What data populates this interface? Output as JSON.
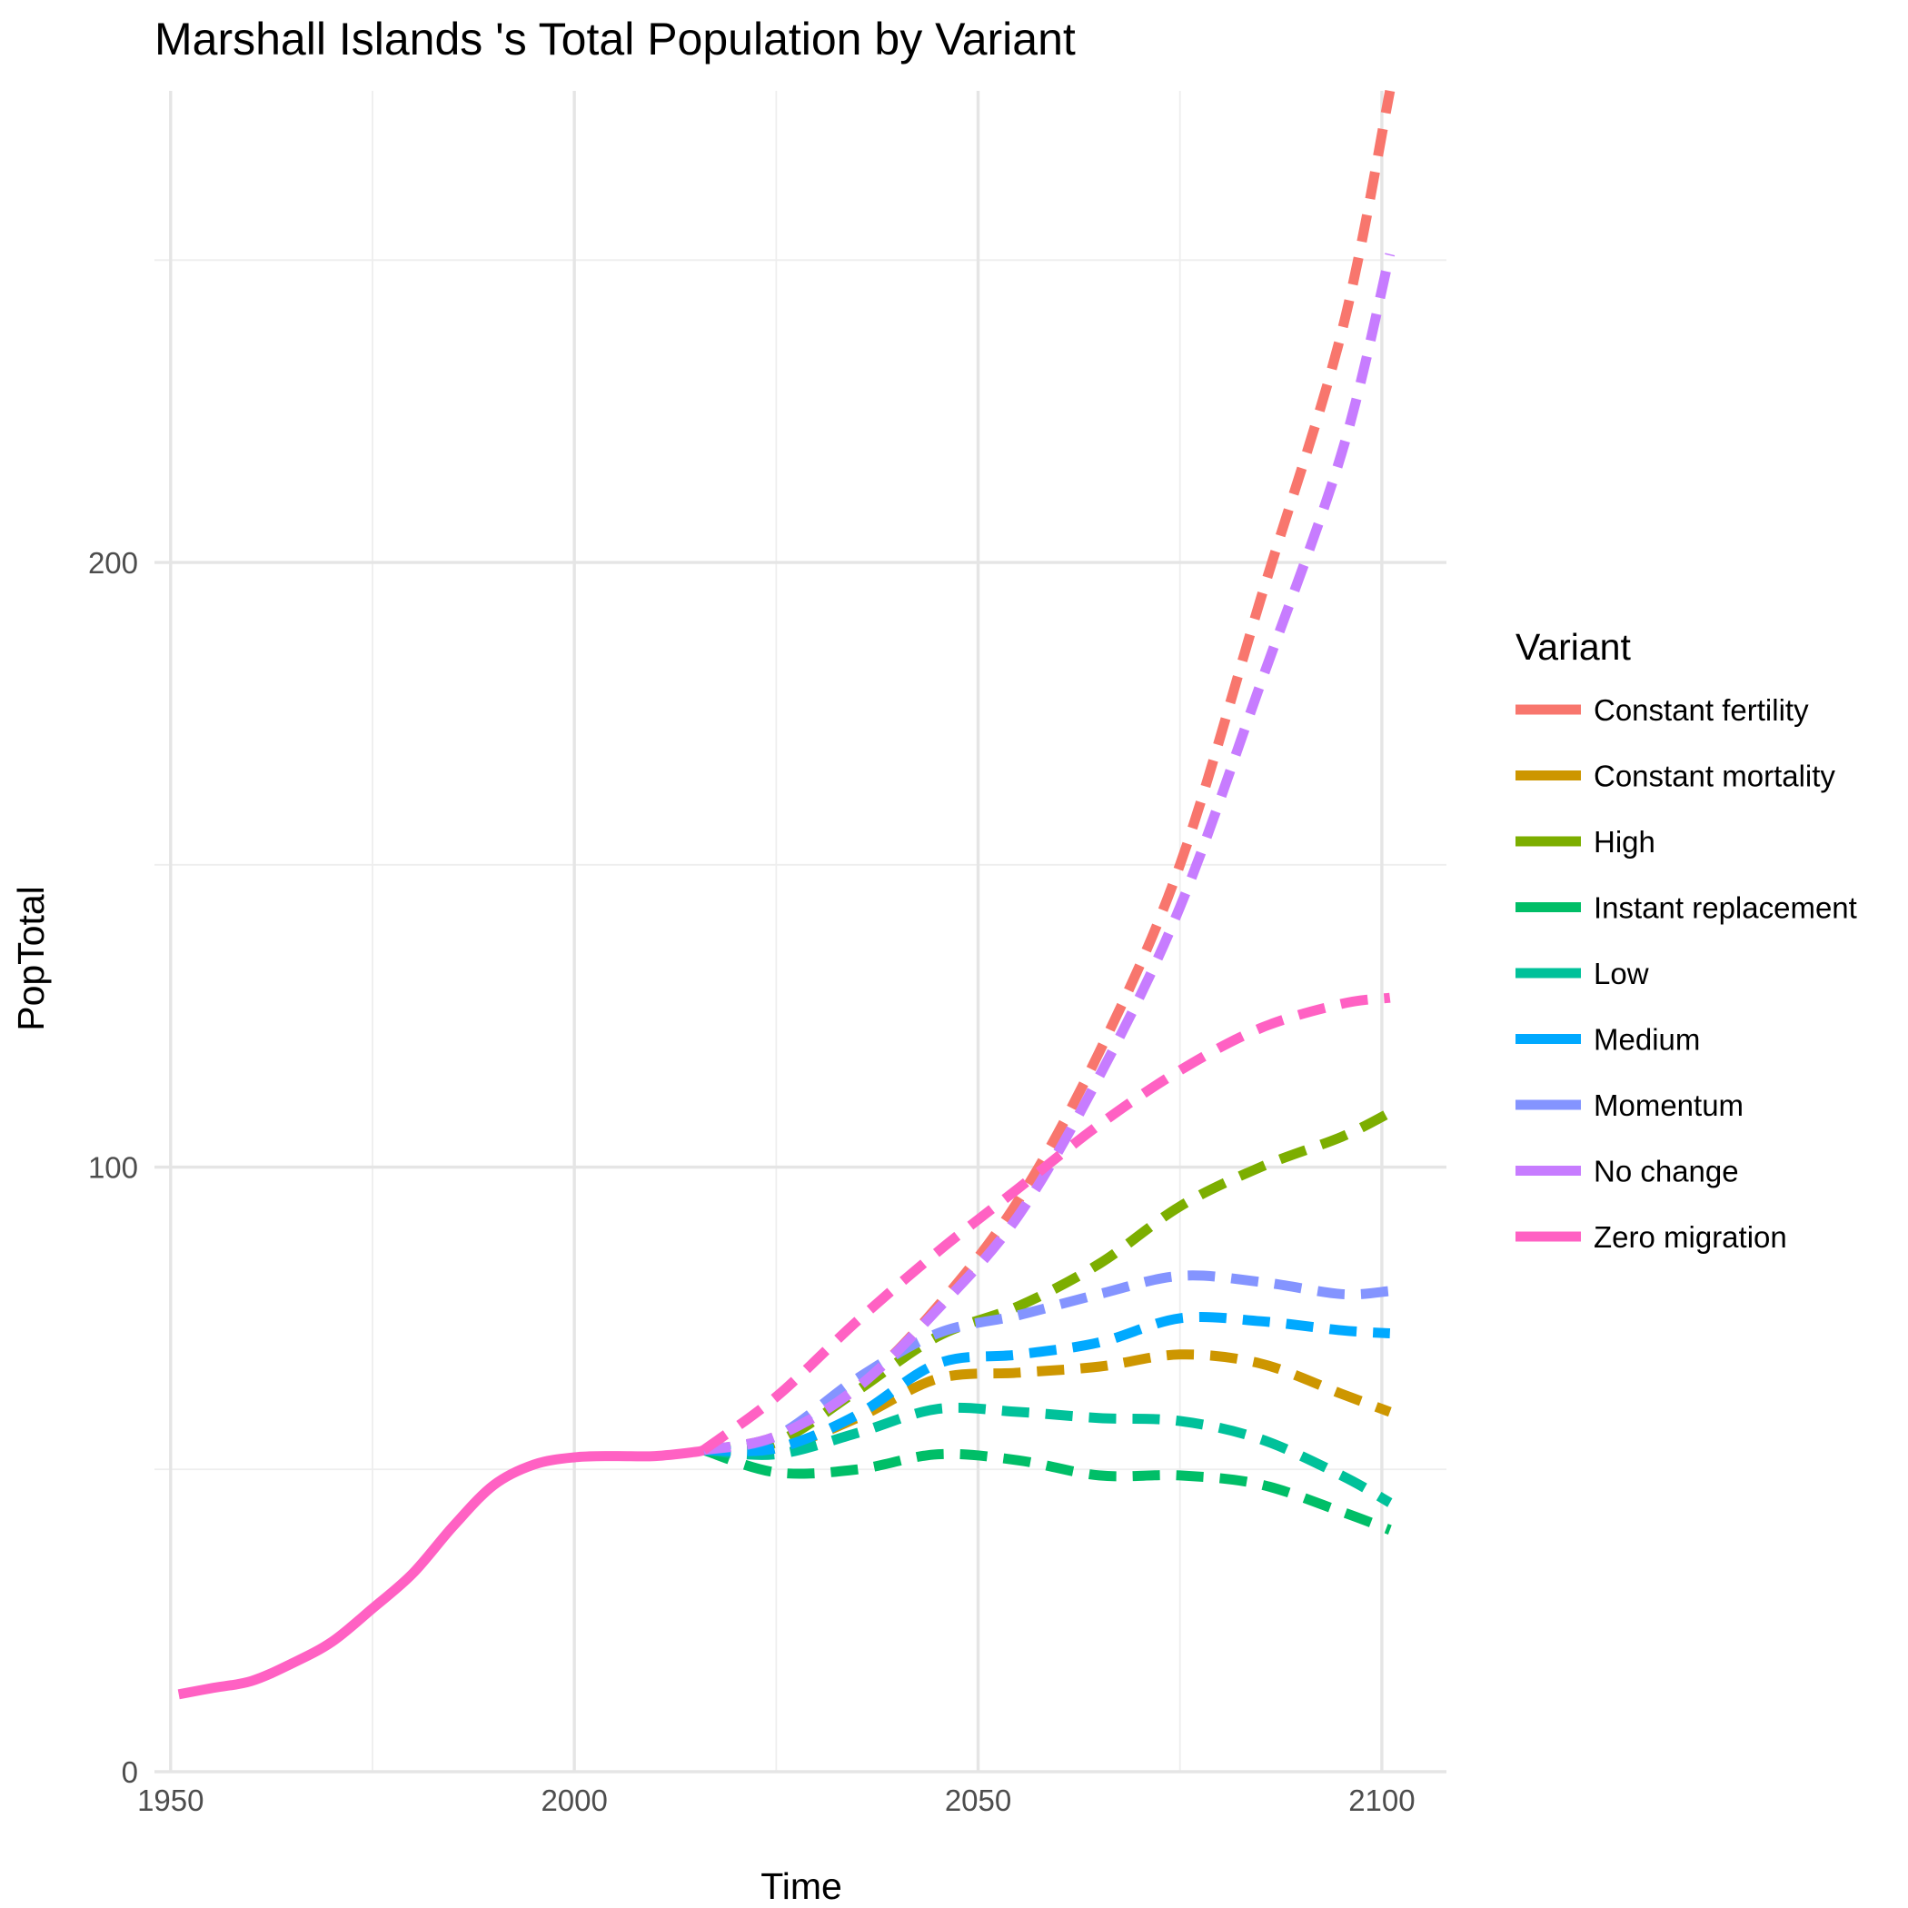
{
  "chart_data": {
    "type": "line",
    "title": "Marshall Islands 's Total Population by Variant",
    "xlabel": "Time",
    "ylabel": "PopTotal",
    "xlim": [
      1948,
      2108
    ],
    "ylim": [
      0,
      278
    ],
    "x_ticks": [
      1950,
      2000,
      2050,
      2100
    ],
    "x_tick_labels": [
      "1950",
      "2000",
      "2050",
      "2100"
    ],
    "x_minor_ticks": [
      1975,
      2025,
      2075
    ],
    "y_ticks": [
      0,
      100,
      200
    ],
    "y_tick_labels": [
      "0",
      "100",
      "200"
    ],
    "y_minor_ticks": [
      50,
      150,
      250
    ],
    "grid": true,
    "legend": {
      "title": "Variant",
      "position": "right"
    },
    "history": {
      "name": "Zero migration",
      "color": "#FF61C3",
      "dash": "solid",
      "x": [
        1951,
        1955,
        1960,
        1965,
        1970,
        1975,
        1980,
        1985,
        1990,
        1995,
        2000,
        2005,
        2010,
        2015,
        2016
      ],
      "y": [
        12.8,
        13.8,
        15.0,
        17.9,
        21.5,
        27.0,
        32.8,
        40.6,
        47.4,
        50.8,
        52.0,
        52.2,
        52.2,
        52.9,
        53.2
      ]
    },
    "series": [
      {
        "name": "Constant fertility",
        "color": "#F8766D",
        "dash": "dashed",
        "x": [
          2016,
          2025,
          2035,
          2045,
          2055,
          2065,
          2075,
          2085,
          2095,
          2101
        ],
        "y": [
          53.2,
          55.5,
          63.5,
          77.0,
          94.5,
          119.0,
          150.0,
          194.0,
          238.0,
          278.0
        ]
      },
      {
        "name": "Constant mortality",
        "color": "#CD9600",
        "dash": "dashed",
        "x": [
          2016,
          2025,
          2035,
          2045,
          2055,
          2065,
          2075,
          2085,
          2095,
          2101
        ],
        "y": [
          53.2,
          53.5,
          58.5,
          65.0,
          66.0,
          67.0,
          69.0,
          67.5,
          62.5,
          59.5
        ]
      },
      {
        "name": "High",
        "color": "#7CAE00",
        "dash": "dashed",
        "x": [
          2016,
          2025,
          2035,
          2045,
          2055,
          2065,
          2075,
          2085,
          2095,
          2101
        ],
        "y": [
          53.2,
          54.5,
          63.0,
          72.0,
          77.0,
          84.0,
          93.5,
          100.0,
          105.0,
          109.0
        ]
      },
      {
        "name": "Instant replacement",
        "color": "#00BE67",
        "dash": "dashed",
        "x": [
          2016,
          2025,
          2035,
          2045,
          2055,
          2065,
          2075,
          2085,
          2095,
          2101
        ],
        "y": [
          53.2,
          49.5,
          50.0,
          52.5,
          51.5,
          49.0,
          49.0,
          47.5,
          43.0,
          40.0
        ]
      },
      {
        "name": "Low",
        "color": "#00C19A",
        "dash": "dashed",
        "x": [
          2016,
          2025,
          2035,
          2045,
          2055,
          2065,
          2075,
          2085,
          2095,
          2101
        ],
        "y": [
          53.2,
          52.5,
          56.0,
          60.0,
          59.5,
          58.5,
          58.0,
          55.0,
          49.0,
          44.5
        ]
      },
      {
        "name": "Medium",
        "color": "#00A9FF",
        "dash": "dashed",
        "x": [
          2016,
          2025,
          2035,
          2045,
          2055,
          2065,
          2075,
          2085,
          2095,
          2101
        ],
        "y": [
          53.2,
          53.5,
          59.0,
          67.5,
          69.0,
          71.0,
          75.0,
          74.5,
          73.0,
          72.5
        ]
      },
      {
        "name": "Momentum",
        "color": "#8494FF",
        "dash": "dashed",
        "x": [
          2016,
          2025,
          2035,
          2045,
          2055,
          2065,
          2075,
          2085,
          2095,
          2101
        ],
        "y": [
          53.2,
          55.5,
          65.0,
          72.5,
          75.5,
          79.0,
          82.0,
          81.0,
          79.0,
          79.5
        ]
      },
      {
        "name": "No change",
        "color": "#C77CFF",
        "dash": "dashed",
        "x": [
          2016,
          2025,
          2035,
          2045,
          2055,
          2065,
          2075,
          2085,
          2095,
          2101
        ],
        "y": [
          53.2,
          55.5,
          63.5,
          76.5,
          92.0,
          115.0,
          143.0,
          180.0,
          218.0,
          251.0
        ]
      },
      {
        "name": "Zero migration",
        "color": "#FF61C3",
        "dash": "dashed",
        "x": [
          2016,
          2025,
          2035,
          2045,
          2055,
          2065,
          2075,
          2085,
          2095,
          2101
        ],
        "y": [
          53.2,
          62.0,
          74.5,
          86.0,
          96.5,
          107.0,
          116.0,
          123.0,
          127.0,
          128.0
        ]
      }
    ]
  }
}
